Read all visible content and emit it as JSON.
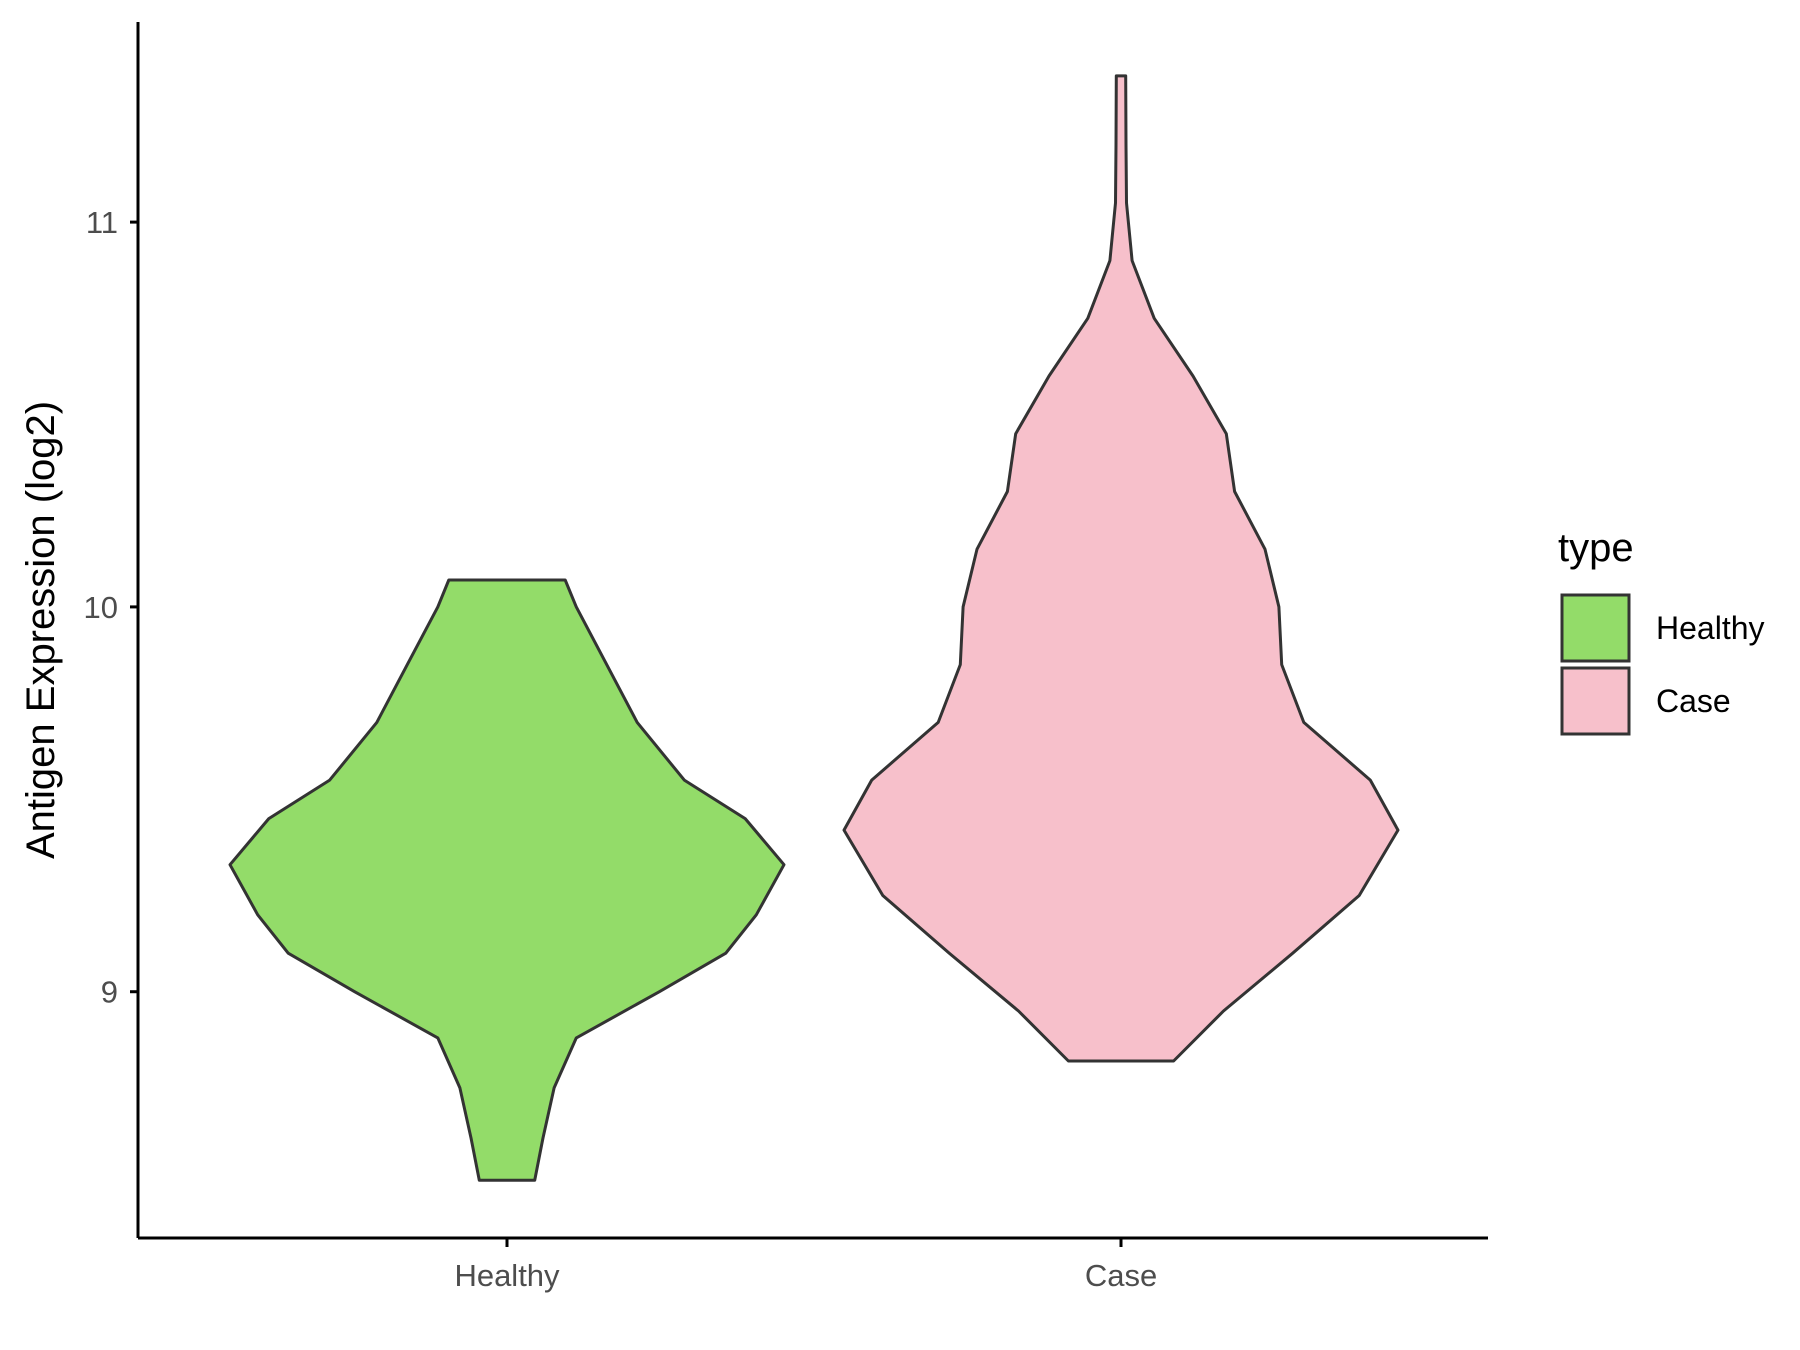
{
  "chart_data": {
    "type": "violin",
    "ylabel": "Antigen Expression (log2)",
    "xlabel": "",
    "categories": [
      "Healthy",
      "Case"
    ],
    "yticks": [
      9,
      10,
      11
    ],
    "ylim": [
      8.36,
      11.52
    ],
    "grid": false,
    "legend": {
      "title": "type",
      "position": "right",
      "entries": [
        {
          "label": "Healthy",
          "color": "#93DC69"
        },
        {
          "label": "Case",
          "color": "#F7C0CB"
        }
      ]
    },
    "series": [
      {
        "name": "Healthy",
        "color": "#93DC69",
        "min": 8.51,
        "max": 10.07,
        "density": [
          [
            8.51,
            0.1
          ],
          [
            8.62,
            0.13
          ],
          [
            8.75,
            0.17
          ],
          [
            8.88,
            0.25
          ],
          [
            9.0,
            0.55
          ],
          [
            9.1,
            0.79
          ],
          [
            9.2,
            0.9
          ],
          [
            9.33,
            1.0
          ],
          [
            9.45,
            0.86
          ],
          [
            9.55,
            0.64
          ],
          [
            9.7,
            0.47
          ],
          [
            9.85,
            0.36
          ],
          [
            10.0,
            0.25
          ],
          [
            10.07,
            0.21
          ]
        ]
      },
      {
        "name": "Case",
        "color": "#F7C0CB",
        "min": 8.82,
        "max": 11.38,
        "density": [
          [
            8.82,
            0.19
          ],
          [
            8.95,
            0.37
          ],
          [
            9.1,
            0.62
          ],
          [
            9.25,
            0.86
          ],
          [
            9.42,
            1.0
          ],
          [
            9.55,
            0.9
          ],
          [
            9.7,
            0.66
          ],
          [
            9.85,
            0.58
          ],
          [
            10.0,
            0.57
          ],
          [
            10.15,
            0.52
          ],
          [
            10.3,
            0.41
          ],
          [
            10.45,
            0.38
          ],
          [
            10.6,
            0.26
          ],
          [
            10.75,
            0.12
          ],
          [
            10.9,
            0.04
          ],
          [
            11.05,
            0.02
          ],
          [
            11.2,
            0.018
          ],
          [
            11.38,
            0.017
          ]
        ]
      }
    ]
  }
}
